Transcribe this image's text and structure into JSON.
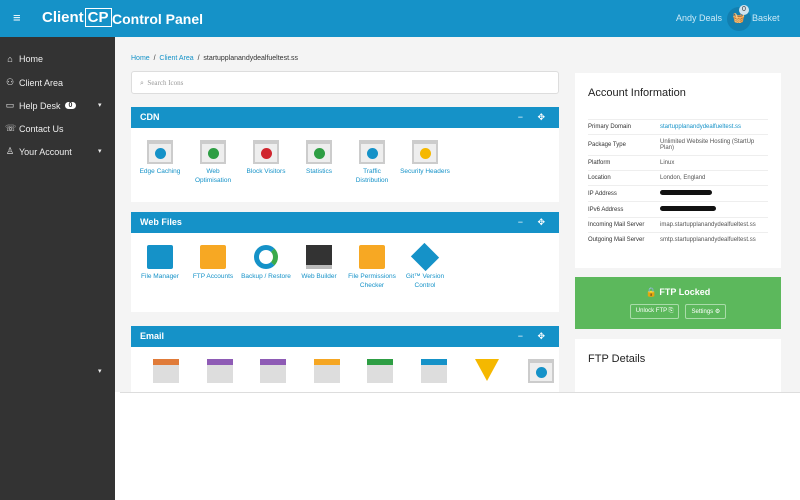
{
  "header": {
    "menu_icon": "hamburger-icon",
    "logo_text": "Client",
    "logo_box": "CP",
    "title": "Control Panel",
    "user": "Andy Deals",
    "basket_count": "0",
    "basket_label": "Basket",
    "accent": "#1592c8"
  },
  "sidebar": {
    "items": [
      {
        "label": "Home",
        "icon": "⌂"
      },
      {
        "label": "Client Area",
        "icon": "⚇"
      },
      {
        "label": "Help Desk",
        "icon": "▭",
        "badge": "0",
        "caret": "▾"
      },
      {
        "label": "Contact Us",
        "icon": "☏"
      },
      {
        "label": "Your Account",
        "icon": "♙",
        "caret": "▾"
      }
    ],
    "extra_caret": "▾"
  },
  "breadcrumb": {
    "home": "Home",
    "client_area": "Client Area",
    "current": "startupplanandydealfueltest.ss",
    "sep": "/"
  },
  "search": {
    "placeholder": "Search Icons"
  },
  "panels": [
    {
      "title": "CDN",
      "tiles": [
        "Edge Caching",
        "Web Optimisation",
        "Block Visitors",
        "Statistics",
        "Traffic Distribution",
        "Security Headers"
      ]
    },
    {
      "title": "Web Files",
      "tiles": [
        "File Manager",
        "FTP Accounts",
        "Backup / Restore",
        "Web Builder",
        "File Permissions Checker",
        "Git™ Version Control"
      ]
    },
    {
      "title": "Email",
      "tiles": [
        "",
        "",
        "",
        "",
        "",
        "",
        "",
        ""
      ]
    }
  ],
  "panel_controls": "− ✥",
  "account": {
    "title": "Account Information",
    "rows": [
      {
        "k": "Primary Domain",
        "v": "startupplanandydealfueltest.ss"
      },
      {
        "k": "Package Type",
        "v": "Unlimited Website Hosting (StartUp Plan)"
      },
      {
        "k": "Platform",
        "v": "Linux"
      },
      {
        "k": "Location",
        "v": "London, England"
      },
      {
        "k": "IP Address",
        "v": ""
      },
      {
        "k": "IPv6 Address",
        "v": ""
      },
      {
        "k": "Incoming Mail Server",
        "v": "imap.startupplanandydealfueltest.ss"
      },
      {
        "k": "Outgoing Mail Server",
        "v": "smtp.startupplanandydealfueltest.ss"
      }
    ]
  },
  "ftp": {
    "status": "🔒 FTP Locked",
    "unlock": "Unlock FTP ⎘",
    "settings": "Settings ⚙",
    "color": "#5cb85c"
  },
  "ftp_details": {
    "title": "FTP Details"
  }
}
